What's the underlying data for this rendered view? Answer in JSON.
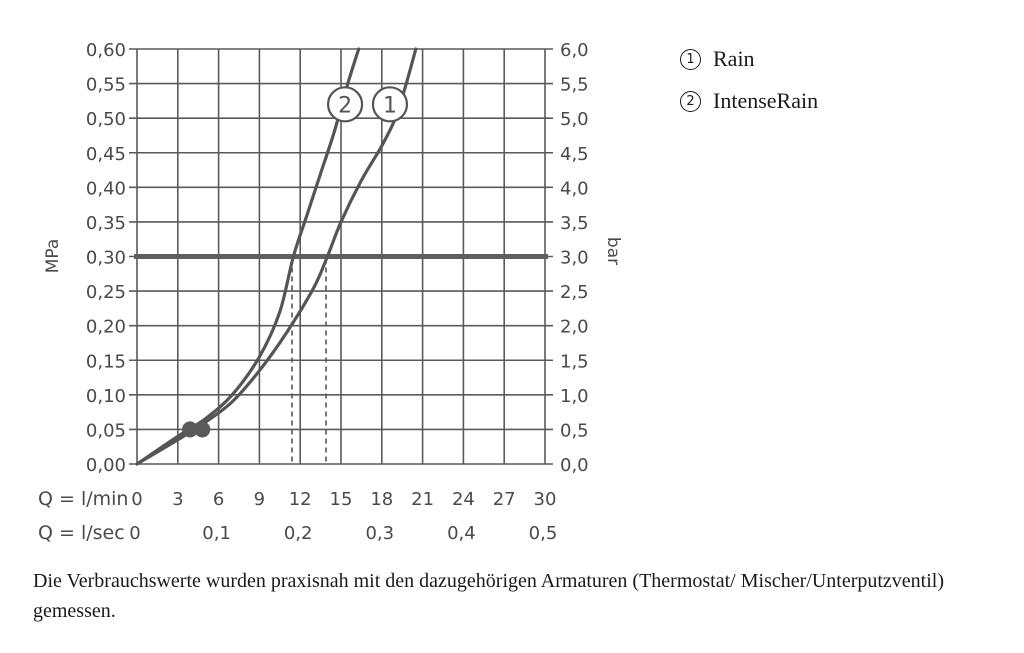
{
  "chart_data": {
    "type": "line",
    "xlabel": "Q = l/min",
    "xlabel2": "Q = l/sec",
    "ylabel_left": "MPa",
    "ylabel_right": "bar",
    "x_ticks": [
      "0",
      "3",
      "6",
      "9",
      "12",
      "15",
      "18",
      "21",
      "24",
      "27",
      "30"
    ],
    "x2_ticks": [
      "0",
      "0,1",
      "0,2",
      "0,3",
      "0,4",
      "0,5"
    ],
    "y_left_ticks": [
      "0,00",
      "0,05",
      "0,10",
      "0,15",
      "0,20",
      "0,25",
      "0,30",
      "0,35",
      "0,40",
      "0,45",
      "0,50",
      "0,55",
      "0,60"
    ],
    "y_right_ticks": [
      "0,0",
      "0,5",
      "1,0",
      "1,5",
      "2,0",
      "2,5",
      "3,0",
      "3,5",
      "4,0",
      "4,5",
      "5,0",
      "5,5",
      "6,0"
    ],
    "xlim": [
      0,
      30
    ],
    "ylim": [
      0,
      0.6
    ],
    "grid": true,
    "reference_line": {
      "y": 0.3
    },
    "series": [
      {
        "name": "1",
        "points": [
          [
            0,
            0
          ],
          [
            3,
            0.035
          ],
          [
            5,
            0.06
          ],
          [
            7,
            0.09
          ],
          [
            9,
            0.135
          ],
          [
            11,
            0.19
          ],
          [
            13,
            0.255
          ],
          [
            14,
            0.3
          ],
          [
            15,
            0.35
          ],
          [
            16.5,
            0.41
          ],
          [
            18,
            0.46
          ],
          [
            19,
            0.5
          ],
          [
            19.8,
            0.55
          ],
          [
            20.5,
            0.6
          ]
        ],
        "marker": {
          "x": 4.8,
          "y": 0.05
        },
        "dropline_x": 13.9
      },
      {
        "name": "2",
        "points": [
          [
            0,
            0
          ],
          [
            3,
            0.04
          ],
          [
            5,
            0.065
          ],
          [
            7,
            0.1
          ],
          [
            9,
            0.155
          ],
          [
            10.5,
            0.22
          ],
          [
            11.5,
            0.3
          ],
          [
            12.5,
            0.36
          ],
          [
            13.5,
            0.42
          ],
          [
            14.5,
            0.48
          ],
          [
            15.5,
            0.55
          ],
          [
            16.3,
            0.6
          ]
        ],
        "marker": {
          "x": 3.9,
          "y": 0.05
        },
        "dropline_x": 11.4
      }
    ],
    "callouts": [
      {
        "label": "1",
        "x": 18.6,
        "y": 0.52
      },
      {
        "label": "2",
        "x": 15.3,
        "y": 0.52
      }
    ]
  },
  "legend": [
    {
      "num": "1",
      "label": "Rain"
    },
    {
      "num": "2",
      "label": "IntenseRain"
    }
  ],
  "footnote": "Die Verbrauchswerte wurden praxisnah mit den dazugehörigen Armaturen (Thermostat/ Mischer/Unterputzventil) gemessen.",
  "colors": {
    "curve": "#555555",
    "grid": "#5a5a5a",
    "reference": "#5f5f5f",
    "text": "#4a4a4a"
  }
}
